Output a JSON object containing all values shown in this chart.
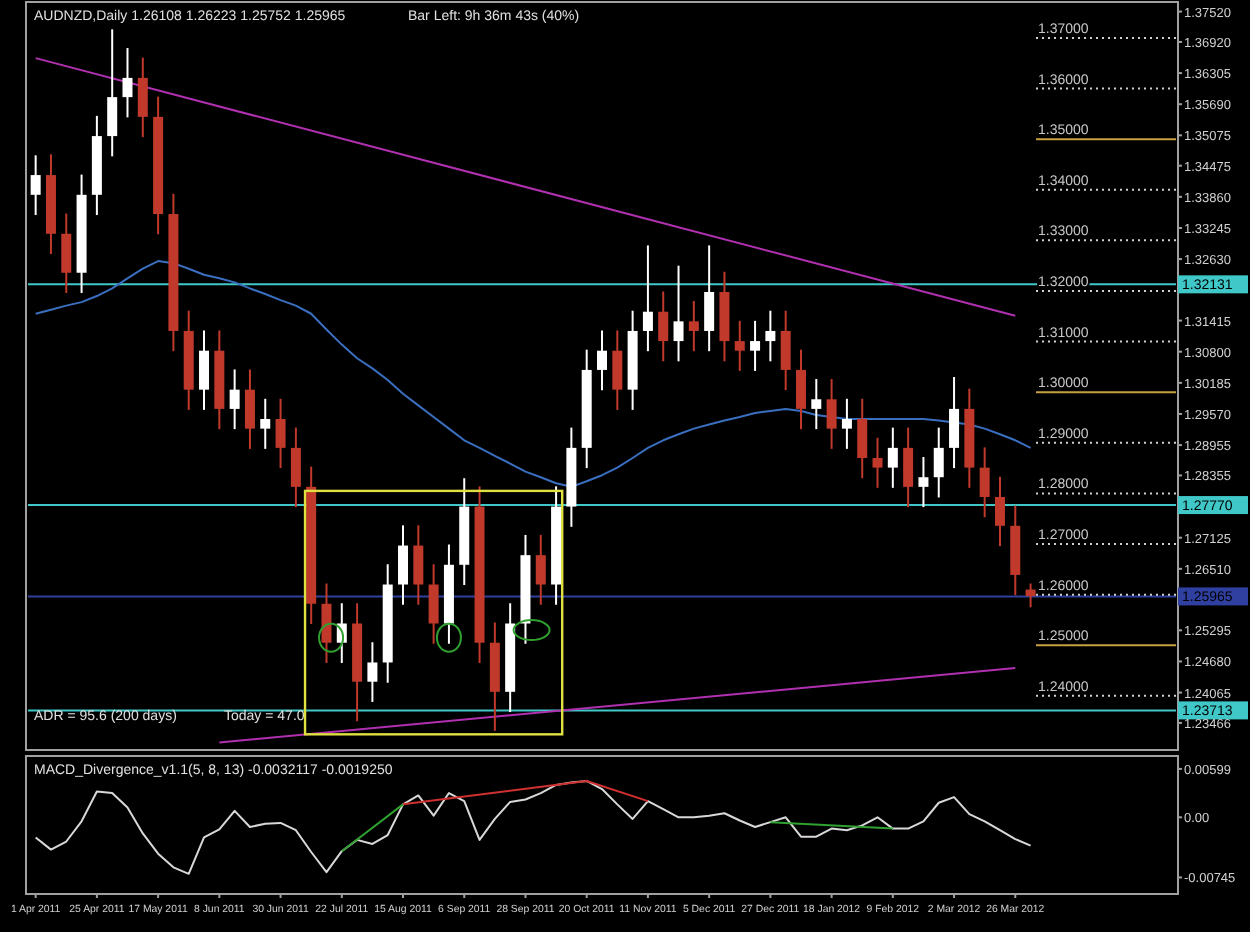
{
  "chart_data": [
    {
      "type": "candlestick",
      "title": "AUDNZD,Daily  1.26108 1.26223 1.25752 1.25965",
      "subtitle": "Bar Left: 9h 36m 43s (40%)",
      "annotations": [
        "ADR = 95.6   (200 days)",
        "Today = 47.0"
      ],
      "categories": [
        "1 Apr 2011",
        null,
        null,
        null,
        "25 Apr 2011",
        null,
        null,
        null,
        "17 May 2011",
        null,
        null,
        null,
        "8 Jun 2011",
        null,
        null,
        null,
        "30 Jun 2011",
        null,
        null,
        null,
        "22 Jul 2011",
        null,
        null,
        null,
        "15 Aug 2011",
        null,
        null,
        null,
        "6 Sep 2011",
        null,
        null,
        null,
        "28 Sep 2011",
        null,
        null,
        null,
        "20 Oct 2011",
        null,
        null,
        null,
        "11 Nov 2011",
        null,
        null,
        null,
        "5 Dec 2011",
        null,
        null,
        null,
        "27 Dec 2011",
        null,
        null,
        null,
        "18 Jan 2012",
        null,
        null,
        null,
        "9 Feb 2012",
        null,
        null,
        null,
        "2 Mar 2012",
        null,
        null,
        null,
        "26 Mar 2012",
        null,
        null,
        null,
        null,
        null,
        null,
        null,
        null,
        null,
        null
      ],
      "ohlc": [
        [
          1.339,
          1.3468,
          1.335,
          1.3429
        ],
        [
          1.3429,
          1.347,
          1.3273,
          1.3313
        ],
        [
          1.3313,
          1.3353,
          1.3196,
          1.3236
        ],
        [
          1.3236,
          1.343,
          1.3196,
          1.339
        ],
        [
          1.339,
          1.3546,
          1.335,
          1.3506
        ],
        [
          1.3506,
          1.3717,
          1.3466,
          1.3583
        ],
        [
          1.3583,
          1.368,
          1.3543,
          1.3621
        ],
        [
          1.3621,
          1.3661,
          1.3504,
          1.3544
        ],
        [
          1.3544,
          1.3584,
          1.3312,
          1.3352
        ],
        [
          1.3352,
          1.3392,
          1.3081,
          1.3121
        ],
        [
          1.3121,
          1.3161,
          1.2965,
          1.3005
        ],
        [
          1.3005,
          1.3122,
          1.2965,
          1.3082
        ],
        [
          1.3082,
          1.3122,
          1.2927,
          1.2967
        ],
        [
          1.2967,
          1.3045,
          1.2927,
          1.3005
        ],
        [
          1.3005,
          1.3045,
          1.2888,
          1.2928
        ],
        [
          1.2928,
          1.2987,
          1.2888,
          1.2947
        ],
        [
          1.2947,
          1.2987,
          1.285,
          1.289
        ],
        [
          1.289,
          1.293,
          1.2773,
          1.2813
        ],
        [
          1.2813,
          1.2853,
          1.2542,
          1.2582
        ],
        [
          1.2582,
          1.2622,
          1.2465,
          1.2505
        ],
        [
          1.2505,
          1.2583,
          1.2465,
          1.2543
        ],
        [
          1.2543,
          1.2583,
          1.235,
          1.2428
        ],
        [
          1.2428,
          1.2506,
          1.2388,
          1.2466
        ],
        [
          1.2466,
          1.266,
          1.2426,
          1.262
        ],
        [
          1.262,
          1.2737,
          1.258,
          1.2697
        ],
        [
          1.2697,
          1.2737,
          1.258,
          1.262
        ],
        [
          1.262,
          1.266,
          1.2503,
          1.2543
        ],
        [
          1.2543,
          1.2699,
          1.2503,
          1.2659
        ],
        [
          1.2659,
          1.283,
          1.2619,
          1.2774
        ],
        [
          1.2774,
          1.2814,
          1.2465,
          1.2505
        ],
        [
          1.2505,
          1.2545,
          1.2331,
          1.2408
        ],
        [
          1.2408,
          1.2583,
          1.2368,
          1.2543
        ],
        [
          1.2543,
          1.2718,
          1.2503,
          1.2678
        ],
        [
          1.2678,
          1.2718,
          1.258,
          1.262
        ],
        [
          1.262,
          1.2814,
          1.258,
          1.2774
        ],
        [
          1.2774,
          1.293,
          1.2734,
          1.289
        ],
        [
          1.289,
          1.3084,
          1.285,
          1.3044
        ],
        [
          1.3044,
          1.3122,
          1.3004,
          1.3082
        ],
        [
          1.3082,
          1.3122,
          1.2965,
          1.3005
        ],
        [
          1.3005,
          1.3161,
          1.2965,
          1.3121
        ],
        [
          1.3121,
          1.329,
          1.3081,
          1.3159
        ],
        [
          1.3159,
          1.3199,
          1.3061,
          1.3101
        ],
        [
          1.3101,
          1.325,
          1.3061,
          1.314
        ],
        [
          1.314,
          1.318,
          1.3081,
          1.3121
        ],
        [
          1.3121,
          1.329,
          1.3081,
          1.3198
        ],
        [
          1.3198,
          1.3238,
          1.3061,
          1.3101
        ],
        [
          1.3101,
          1.3141,
          1.3042,
          1.3082
        ],
        [
          1.3082,
          1.3141,
          1.3042,
          1.3101
        ],
        [
          1.3101,
          1.3161,
          1.3061,
          1.3121
        ],
        [
          1.3121,
          1.3161,
          1.3004,
          1.3044
        ],
        [
          1.3044,
          1.3084,
          1.2927,
          1.2967
        ],
        [
          1.2967,
          1.3026,
          1.2927,
          1.2986
        ],
        [
          1.2986,
          1.3026,
          1.2888,
          1.2928
        ],
        [
          1.2928,
          1.2987,
          1.2888,
          1.2947
        ],
        [
          1.2947,
          1.2987,
          1.283,
          1.287
        ],
        [
          1.287,
          1.291,
          1.2811,
          1.2851
        ],
        [
          1.2851,
          1.293,
          1.2811,
          1.289
        ],
        [
          1.289,
          1.293,
          1.2773,
          1.2813
        ],
        [
          1.2813,
          1.2872,
          1.2773,
          1.2832
        ],
        [
          1.2832,
          1.293,
          1.2792,
          1.289
        ],
        [
          1.289,
          1.303,
          1.285,
          1.2967
        ],
        [
          1.2967,
          1.3007,
          1.2811,
          1.2851
        ],
        [
          1.2851,
          1.2891,
          1.2753,
          1.2793
        ],
        [
          1.2793,
          1.2833,
          1.2696,
          1.2736
        ],
        [
          1.2736,
          1.2776,
          1.2599,
          1.2639
        ],
        [
          1.261,
          1.2622,
          1.2575,
          1.2597
        ],
        null,
        null,
        null,
        null,
        null,
        null,
        null,
        null,
        null
      ],
      "colors": [
        "#ffffff",
        "#c0392b",
        "#c0392b",
        "#ffffff",
        "#ffffff",
        "#ffffff",
        "#ffffff",
        "#c0392b",
        "#c0392b",
        "#c0392b",
        "#c0392b",
        "#ffffff",
        "#c0392b",
        "#ffffff",
        "#c0392b",
        "#ffffff",
        "#c0392b",
        "#c0392b",
        "#c0392b",
        "#c0392b",
        "#ffffff",
        "#c0392b",
        "#ffffff",
        "#ffffff",
        "#ffffff",
        "#c0392b",
        "#c0392b",
        "#ffffff",
        "#ffffff",
        "#c0392b",
        "#c0392b",
        "#ffffff",
        "#ffffff",
        "#c0392b",
        "#ffffff",
        "#ffffff",
        "#ffffff",
        "#ffffff",
        "#c0392b",
        "#ffffff",
        "#ffffff",
        "#c0392b",
        "#ffffff",
        "#c0392b",
        "#ffffff",
        "#c0392b",
        "#c0392b",
        "#ffffff",
        "#ffffff",
        "#c0392b",
        "#c0392b",
        "#ffffff",
        "#c0392b",
        "#ffffff",
        "#c0392b",
        "#c0392b",
        "#ffffff",
        "#c0392b",
        "#ffffff",
        "#ffffff",
        "#ffffff",
        "#c0392b",
        "#c0392b",
        "#c0392b",
        "#c0392b",
        "#c0392b",
        null,
        null,
        null,
        null,
        null,
        null,
        null,
        null,
        null
      ],
      "series": [
        {
          "type": "line",
          "color": "#3a6fc0",
          "values": [
            1.3155,
            1.3163,
            1.3171,
            1.3178,
            1.319,
            1.3205,
            1.3225,
            1.3244,
            1.3259,
            1.3255,
            1.3244,
            1.3232,
            1.3225,
            1.3217,
            1.3205,
            1.3194,
            1.3182,
            1.3171,
            1.3155,
            1.3124,
            1.3094,
            1.3067,
            1.3047,
            1.3024,
            1.2997,
            1.2974,
            1.2951,
            1.2928,
            1.2905,
            1.289,
            1.2874,
            1.2859,
            1.2843,
            1.2832,
            1.282,
            1.2813,
            1.2824,
            1.2836,
            1.2851,
            1.287,
            1.289,
            1.2905,
            1.2917,
            1.2928,
            1.2936,
            1.2944,
            1.2951,
            1.2959,
            1.2963,
            1.2967,
            1.2963,
            1.2955,
            1.2951,
            1.2947,
            1.2947,
            1.2947,
            1.2947,
            1.2947,
            1.2947,
            1.2944,
            1.294,
            1.2936,
            1.2928,
            1.2917,
            1.2905,
            1.289,
            null,
            null,
            null,
            null,
            null,
            null,
            null,
            null,
            null
          ]
        },
        {
          "type": "line",
          "color": "#b030b0",
          "x": [
            "1 Apr 2011",
            "26 Mar 2012"
          ],
          "values": [
            1.366,
            1.3151
          ]
        },
        {
          "type": "line",
          "color": "#b030b0",
          "x": [
            "8 Jun 2011",
            "26 Mar 2012"
          ],
          "values": [
            1.2308,
            1.2455
          ]
        }
      ],
      "ref_lines": [
        {
          "axis": "y",
          "value": 1.32131,
          "label": "1.32131",
          "color": "#40c8c8"
        },
        {
          "axis": "y",
          "value": 1.2777,
          "label": "1.27770",
          "color": "#40c8c8"
        },
        {
          "axis": "y",
          "value": 1.25965,
          "label": "1.25965",
          "color": "#3040a0"
        },
        {
          "axis": "y",
          "value": 1.23713,
          "label": "1.23713",
          "color": "#40c8c8"
        },
        {
          "axis": "y",
          "value": 1.37,
          "label": "1.37000",
          "color": "#d0d0d0",
          "line_style": "dotted"
        },
        {
          "axis": "y",
          "value": 1.36,
          "label": "1.36000",
          "color": "#d0d0d0",
          "line_style": "dotted"
        },
        {
          "axis": "y",
          "value": 1.35,
          "label": "1.35000",
          "color": "#c8a040",
          "line_style": "solid"
        },
        {
          "axis": "y",
          "value": 1.34,
          "label": "1.34000",
          "color": "#d0d0d0",
          "line_style": "dotted"
        },
        {
          "axis": "y",
          "value": 1.33,
          "label": "1.33000",
          "color": "#d0d0d0",
          "line_style": "dotted"
        },
        {
          "axis": "y",
          "value": 1.32,
          "label": "1.32000",
          "color": "#d0d0d0",
          "line_style": "dotted"
        },
        {
          "axis": "y",
          "value": 1.31,
          "label": "1.31000",
          "color": "#d0d0d0",
          "line_style": "dotted"
        },
        {
          "axis": "y",
          "value": 1.3,
          "label": "1.30000",
          "color": "#c8a040",
          "line_style": "solid"
        },
        {
          "axis": "y",
          "value": 1.29,
          "label": "1.29000",
          "color": "#d0d0d0",
          "line_style": "dotted"
        },
        {
          "axis": "y",
          "value": 1.28,
          "label": "1.28000",
          "color": "#d0d0d0",
          "line_style": "dotted"
        },
        {
          "axis": "y",
          "value": 1.27,
          "label": "1.27000",
          "color": "#d0d0d0",
          "line_style": "dotted"
        },
        {
          "axis": "y",
          "value": 1.26,
          "label": "1.26000",
          "color": "#d0d0d0",
          "line_style": "dotted"
        },
        {
          "axis": "y",
          "value": 1.25,
          "label": "1.25000",
          "color": "#c8a040",
          "line_style": "solid"
        },
        {
          "axis": "y",
          "value": 1.24,
          "label": "1.24000",
          "color": "#d0d0d0",
          "line_style": "dotted"
        }
      ],
      "ylim": [
        1.2297,
        1.3767
      ],
      "yticks": [
        {
          "value": 1.3752,
          "label": "1.37520"
        },
        {
          "value": 1.3692,
          "label": "1.36920"
        },
        {
          "value": 1.36305,
          "label": "1.36305"
        },
        {
          "value": 1.3569,
          "label": "1.35690"
        },
        {
          "value": 1.35075,
          "label": "1.35075"
        },
        {
          "value": 1.34475,
          "label": "1.34475"
        },
        {
          "value": 1.3386,
          "label": "1.33860"
        },
        {
          "value": 1.33245,
          "label": "1.33245"
        },
        {
          "value": 1.3263,
          "label": "1.32630"
        },
        {
          "value": 1.31415,
          "label": "1.31415"
        },
        {
          "value": 1.308,
          "label": "1.30800"
        },
        {
          "value": 1.30185,
          "label": "1.30185"
        },
        {
          "value": 1.2957,
          "label": "1.29570"
        },
        {
          "value": 1.28955,
          "label": "1.28955"
        },
        {
          "value": 1.28355,
          "label": "1.28355"
        },
        {
          "value": 1.27125,
          "label": "1.27125"
        },
        {
          "value": 1.2651,
          "label": "1.26510"
        },
        {
          "value": 1.25295,
          "label": "1.25295"
        },
        {
          "value": 1.2468,
          "label": "1.24680"
        },
        {
          "value": 1.24065,
          "label": "1.24065"
        },
        {
          "value": 1.23466,
          "label": "1.23466"
        }
      ],
      "tick_labels": "y"
    },
    {
      "type": "line",
      "title": "MACD_Divergence_v1.1(5, 8, 13) -0.0032117 -0.0019250",
      "categories": [
        "1 Apr 2011",
        null,
        null,
        null,
        "25 Apr 2011",
        null,
        null,
        null,
        "17 May 2011",
        null,
        null,
        null,
        "8 Jun 2011",
        null,
        null,
        null,
        "30 Jun 2011",
        null,
        null,
        null,
        "22 Jul 2011",
        null,
        null,
        null,
        "15 Aug 2011",
        null,
        null,
        null,
        "6 Sep 2011",
        null,
        null,
        null,
        "28 Sep 2011",
        null,
        null,
        null,
        "20 Oct 2011",
        null,
        null,
        null,
        "11 Nov 2011",
        null,
        null,
        null,
        "5 Dec 2011",
        null,
        null,
        null,
        "27 Dec 2011",
        null,
        null,
        null,
        "18 Jan 2012",
        null,
        null,
        null,
        "9 Feb 2012",
        null,
        null,
        null,
        "2 Mar 2012",
        null,
        null,
        null,
        "26 Mar 2012",
        null,
        null,
        null,
        null,
        null,
        null,
        null,
        null,
        null,
        null
      ],
      "series": [
        {
          "color": "#d8d8d8",
          "values": [
            -0.0025,
            -0.004,
            -0.003,
            -0.0005,
            0.0032,
            0.003,
            0.0012,
            -0.002,
            -0.0045,
            -0.0062,
            -0.007,
            -0.0025,
            -0.0015,
            0.0008,
            -0.0012,
            -0.0008,
            -0.0007,
            -0.0016,
            -0.0043,
            -0.0068,
            -0.0042,
            -0.0028,
            -0.0033,
            -0.0022,
            0.0016,
            0.0027,
            0.0002,
            0.003,
            0.002,
            -0.0028,
            -0.0002,
            0.0019,
            0.0022,
            0.003,
            0.004,
            0.0043,
            0.0045,
            0.0035,
            0.0016,
            -0.0002,
            0.002,
            0.001,
            0,
            0,
            0.0002,
            0.0005,
            -0.0004,
            -0.0012,
            -0.0006,
            0,
            -0.0024,
            -0.0024,
            -0.0014,
            -0.0016,
            -0.001,
            0,
            -0.0014,
            -0.0014,
            -0.0005,
            0.0018,
            0.0025,
            0.0004,
            -0.0005,
            -0.0016,
            -0.0027,
            -0.0035,
            null,
            null,
            null,
            null,
            null,
            null,
            null,
            null,
            null
          ]
        },
        {
          "color": "#d03030",
          "x": [
            "15 Aug 2011",
            "20 Oct 2011",
            "11 Nov 2011"
          ],
          "values": [
            0.0016,
            0.0045,
            0.002
          ]
        },
        {
          "color": "#30a030",
          "x": [
            "22 Jul 2011",
            "15 Aug 2011"
          ],
          "values": [
            -0.0042,
            0.0016
          ]
        },
        {
          "color": "#30a030",
          "x": [
            "27 Dec 2011",
            "9 Feb 2012"
          ],
          "values": [
            -0.0006,
            -0.0014
          ]
        }
      ],
      "ylim": [
        -0.00925,
        0.00734
      ],
      "yticks": [
        {
          "value": 0.00599,
          "label": "0.00599"
        },
        {
          "value": 0,
          "label": "0.00"
        },
        {
          "value": -0.00745,
          "label": "-0.00745"
        }
      ]
    }
  ]
}
